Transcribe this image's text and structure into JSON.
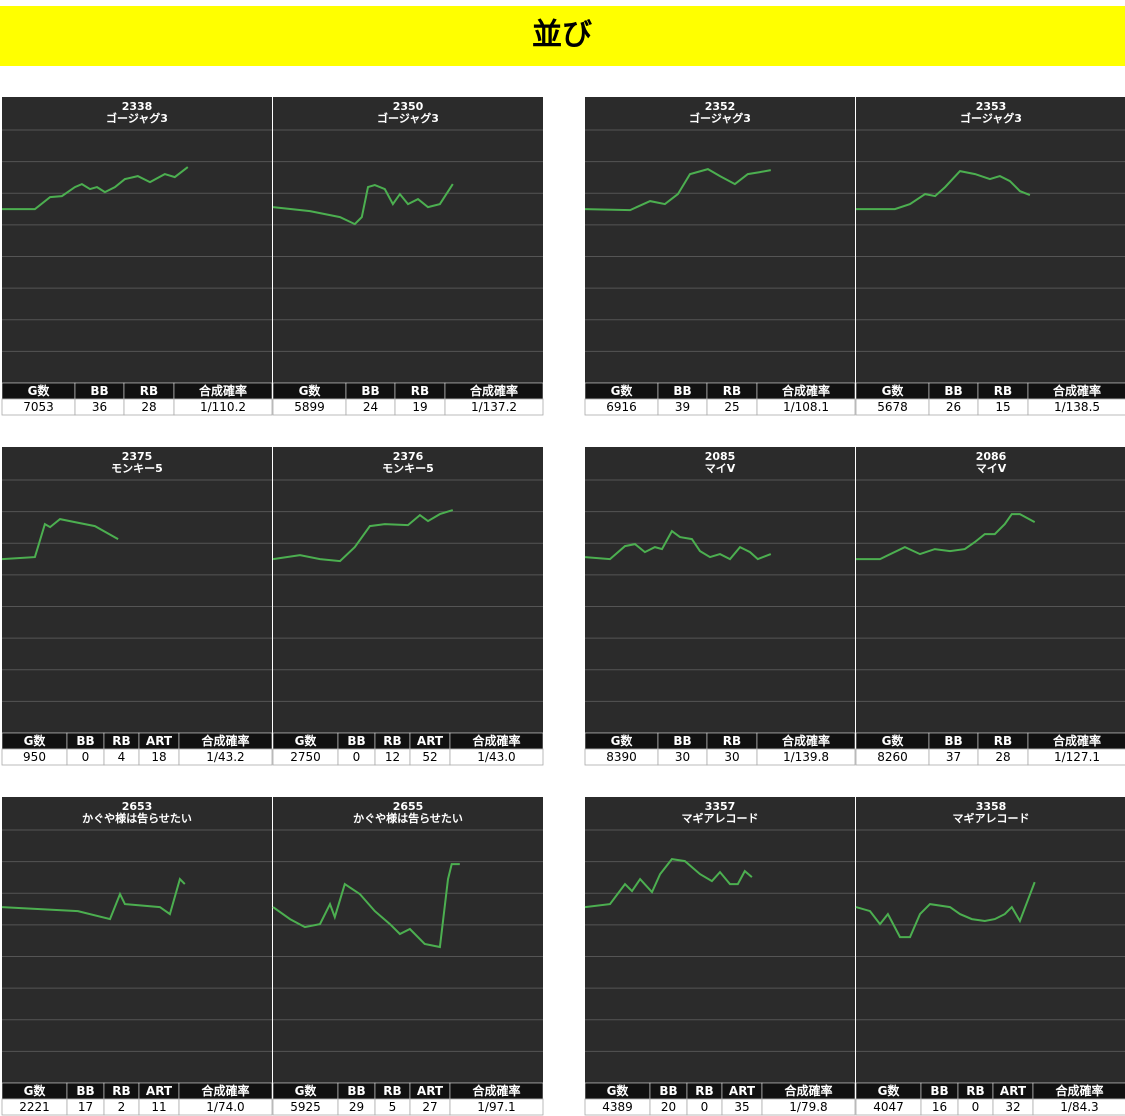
{
  "title": "並び",
  "xlim": [
    0,
    10000
  ],
  "ylim": [
    -5500,
    2500
  ],
  "yticks": [
    -5500,
    -4500,
    -3500,
    -2500,
    -1500,
    -500,
    500,
    1500,
    2500
  ],
  "groups": [
    {
      "panels": [
        {
          "number": "2338",
          "name": "ゴージャグ3",
          "headers": [
            "G数",
            "BB",
            "RB",
            "合成確率"
          ],
          "stats": [
            7053,
            36,
            28,
            "1/110.2"
          ],
          "line": {
            "x": [
              0,
              1220,
              1780,
              2220,
              2700,
              2960,
              3260,
              3520,
              3810,
              4180,
              4550,
              5030,
              5480,
              6030,
              6400,
              6880
            ],
            "y": [
              0,
              0,
              379,
              411,
              695,
              790,
              632,
              695,
              537,
              695,
              948,
              1043,
              853,
              1106,
              1011,
              1327
            ]
          }
        },
        {
          "number": "2350",
          "name": "ゴージャグ3",
          "headers": [
            "G数",
            "BB",
            "RB",
            "合成確率"
          ],
          "stats": [
            5899,
            24,
            19,
            "1/137.2"
          ],
          "line": {
            "x": [
              0,
              1370,
              2480,
              3030,
              3290,
              3520,
              3770,
              4140,
              4440,
              4700,
              5000,
              5370,
              5740,
              6180,
              6660
            ],
            "y": [
              63,
              -63,
              -253,
              -474,
              -253,
              695,
              758,
              632,
              158,
              474,
              158,
              316,
              63,
              158,
              790
            ]
          }
        }
      ]
    },
    {
      "panels": [
        {
          "number": "2352",
          "name": "ゴージャグ3",
          "headers": [
            "G数",
            "BB",
            "RB",
            "合成確率"
          ],
          "stats": [
            6916,
            39,
            25,
            "1/108.1"
          ],
          "line": {
            "x": [
              0,
              1670,
              2410,
              2960,
              3440,
              3890,
              4550,
              5000,
              5550,
              6030,
              6480,
              6880
            ],
            "y": [
              0,
              -32,
              253,
              158,
              474,
              1106,
              1264,
              1043,
              790,
              1106,
              1169,
              1232
            ]
          }
        },
        {
          "number": "2353",
          "name": "ゴージャグ3",
          "headers": [
            "G数",
            "BB",
            "RB",
            "合成確率"
          ],
          "stats": [
            5678,
            26,
            15,
            "1/138.5"
          ],
          "line": {
            "x": [
              0,
              1440,
              2000,
              2560,
              2930,
              3300,
              3850,
              4410,
              4960,
              5330,
              5700,
              6070,
              6440
            ],
            "y": [
              0,
              0,
              158,
              474,
              411,
              695,
              1201,
              1106,
              948,
              1043,
              885,
              569,
              442
            ]
          }
        }
      ]
    },
    {
      "panels": [
        {
          "number": "2375",
          "name": "モンキー5",
          "headers": [
            "G数",
            "BB",
            "RB",
            "ART",
            "合成確率"
          ],
          "stats": [
            950,
            0,
            4,
            18,
            "1/43.2"
          ],
          "line": {
            "x": [
              0,
              1220,
              1590,
              1780,
              2150,
              2700,
              3440,
              4300
            ],
            "y": [
              0,
              63,
              1106,
              1011,
              1264,
              1169,
              1043,
              632
            ]
          }
        },
        {
          "number": "2376",
          "name": "モンキー5",
          "headers": [
            "G数",
            "BB",
            "RB",
            "ART",
            "合成確率"
          ],
          "stats": [
            2750,
            0,
            12,
            52,
            "1/43.0"
          ],
          "line": {
            "x": [
              0,
              1000,
              1740,
              2480,
              3030,
              3590,
              4140,
              5000,
              5440,
              5740,
              6180,
              6660
            ],
            "y": [
              0,
              126,
              0,
              -63,
              379,
              1043,
              1106,
              1075,
              1390,
              1201,
              1422,
              1548
            ]
          }
        }
      ]
    },
    {
      "panels": [
        {
          "number": "2085",
          "name": "マイV",
          "headers": [
            "G数",
            "BB",
            "RB",
            "合成確率"
          ],
          "stats": [
            8390,
            30,
            30,
            "1/139.8"
          ],
          "line": {
            "x": [
              0,
              925,
              1480,
              1850,
              2220,
              2590,
              2850,
              3220,
              3520,
              3960,
              4260,
              4630,
              5000,
              5370,
              5740,
              6110,
              6400,
              6880
            ],
            "y": [
              63,
              0,
              411,
              474,
              221,
              379,
              316,
              885,
              695,
              632,
              253,
              63,
              158,
              0,
              379,
              221,
              0,
              158
            ]
          }
        },
        {
          "number": "2086",
          "name": "マイV",
          "headers": [
            "G数",
            "BB",
            "RB",
            "合成確率"
          ],
          "stats": [
            8260,
            37,
            28,
            "1/127.1"
          ],
          "line": {
            "x": [
              0,
              890,
              1810,
              2370,
              2920,
              3480,
              4030,
              4400,
              4770,
              5140,
              5510,
              5770,
              6070,
              6620
            ],
            "y": [
              0,
              0,
              379,
              158,
              316,
              253,
              316,
              537,
              790,
              790,
              1106,
              1422,
              1422,
              1169
            ]
          }
        }
      ]
    },
    {
      "panels": [
        {
          "number": "2653",
          "name": "かぐや様は告らせたい",
          "headers": [
            "G数",
            "BB",
            "RB",
            "ART",
            "合成確率"
          ],
          "stats": [
            2221,
            17,
            2,
            11,
            "1/74.0"
          ],
          "line": {
            "x": [
              0,
              2810,
              4000,
              4370,
              4550,
              5850,
              6220,
              6590,
              6770
            ],
            "y": [
              63,
              -63,
              -316,
              474,
              158,
              63,
              -158,
              948,
              790
            ]
          }
        },
        {
          "number": "2655",
          "name": "かぐや様は告らせたい",
          "headers": [
            "G数",
            "BB",
            "RB",
            "ART",
            "合成確率"
          ],
          "stats": [
            5925,
            29,
            5,
            27,
            "1/97.1"
          ],
          "line": {
            "x": [
              0,
              630,
              1180,
              1740,
              2110,
              2290,
              2660,
              3220,
              3770,
              4330,
              4700,
              5070,
              5620,
              6180,
              6480,
              6620,
              6920
            ],
            "y": [
              63,
              -316,
              -569,
              -474,
              158,
              -253,
              790,
              474,
              -63,
              -474,
              -790,
              -632,
              -1106,
              -1201,
              948,
              1422,
              1422
            ]
          }
        }
      ]
    },
    {
      "panels": [
        {
          "number": "3357",
          "name": "マギアレコード",
          "headers": [
            "G数",
            "BB",
            "RB",
            "ART",
            "合成確率"
          ],
          "stats": [
            4389,
            20,
            0,
            35,
            "1/79.8"
          ],
          "line": {
            "x": [
              0,
              925,
              1480,
              1740,
              2040,
              2480,
              2780,
              3220,
              3700,
              4260,
              4700,
              5000,
              5370,
              5660,
              5920,
              6180
            ],
            "y": [
              63,
              158,
              790,
              569,
              948,
              537,
              1106,
              1580,
              1517,
              1106,
              885,
              1169,
              790,
              790,
              1201,
              1011
            ]
          }
        },
        {
          "number": "3358",
          "name": "マギアレコード",
          "headers": [
            "G数",
            "BB",
            "RB",
            "ART",
            "合成確率"
          ],
          "stats": [
            4047,
            16,
            0,
            32,
            "1/84.3"
          ],
          "line": {
            "x": [
              0,
              520,
              890,
              1180,
              1630,
              2000,
              2370,
              2740,
              3480,
              3850,
              4290,
              4770,
              5140,
              5510,
              5770,
              6070,
              6620
            ],
            "y": [
              63,
              -63,
              -474,
              -158,
              -885,
              -885,
              -158,
              158,
              63,
              -158,
              -316,
              -379,
              -316,
              -158,
              63,
              -379,
              853
            ]
          }
        }
      ]
    }
  ]
}
